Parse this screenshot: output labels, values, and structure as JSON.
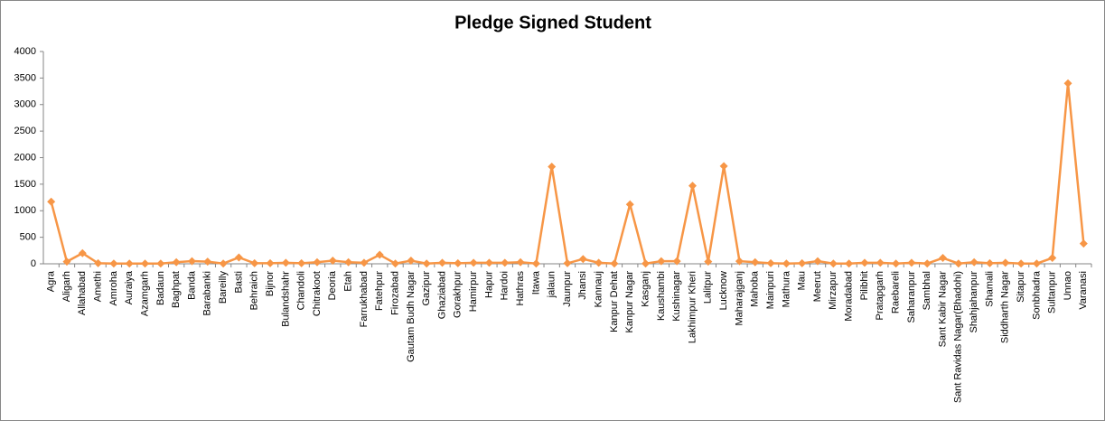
{
  "chart_data": {
    "type": "line",
    "title": "Pledge Signed Student",
    "categories": [
      "Agra",
      "Aligarh",
      "Allahabad",
      "Amethi",
      "Amroha",
      "Auraiya",
      "Azamgarh",
      "Badaun",
      "Baghpat",
      "Banda",
      "Barabanki",
      "Bareilly",
      "Basti",
      "Behraich",
      "Bijnor",
      "Bulandshahr",
      "Chandoli",
      "Chitrakoot",
      "Deoria",
      "Etah",
      "Farrukhabad",
      "Fatehpur",
      "Firozabad",
      "Gautam Budh Nagar",
      "Gazipur",
      "Ghaziabad",
      "Gorakhpur",
      "Hamirpur",
      "Hapur",
      "Hardoi",
      "Hathras",
      "Itawa",
      "jalaun",
      "Jaunpur",
      "Jhansi",
      "Kannauj",
      "Kanpur Dehat",
      "Kanpur Nagar",
      "Kasganj",
      "Kaushambi",
      "Kushinagar",
      "Lakhimpur Kheri",
      "Lalitpur",
      "Lucknow",
      "Maharajganj",
      "Mahoba",
      "Mainpuri",
      "Mathura",
      "Mau",
      "Meerut",
      "Mirzapur",
      "Moradabad",
      "Pilibhit",
      "Pratapgarh",
      "Raebareli",
      "Saharanpur",
      "Sambhal",
      "Sant Kabir Nagar",
      "Sant Ravidas Nagar(Bhadohi)",
      "Shahjahanpur",
      "Shamali",
      "Siddharth Nagar",
      "Sitapur",
      "Sonbhadra",
      "Sultanpur",
      "Unnao",
      "Varanasi"
    ],
    "values": [
      1170,
      40,
      200,
      10,
      5,
      5,
      5,
      5,
      30,
      50,
      40,
      5,
      120,
      10,
      10,
      20,
      10,
      30,
      60,
      30,
      20,
      170,
      5,
      60,
      5,
      20,
      10,
      20,
      20,
      20,
      30,
      5,
      1830,
      10,
      90,
      20,
      5,
      1120,
      5,
      50,
      50,
      1470,
      40,
      1840,
      50,
      30,
      10,
      5,
      10,
      50,
      5,
      5,
      20,
      20,
      5,
      20,
      5,
      110,
      5,
      30,
      10,
      20,
      5,
      5,
      110,
      3400,
      380
    ],
    "color": "#f79646",
    "ylim": [
      0,
      4000
    ],
    "yticks": [
      0,
      500,
      1000,
      1500,
      2000,
      2500,
      3000,
      3500,
      4000
    ],
    "grid": false
  }
}
